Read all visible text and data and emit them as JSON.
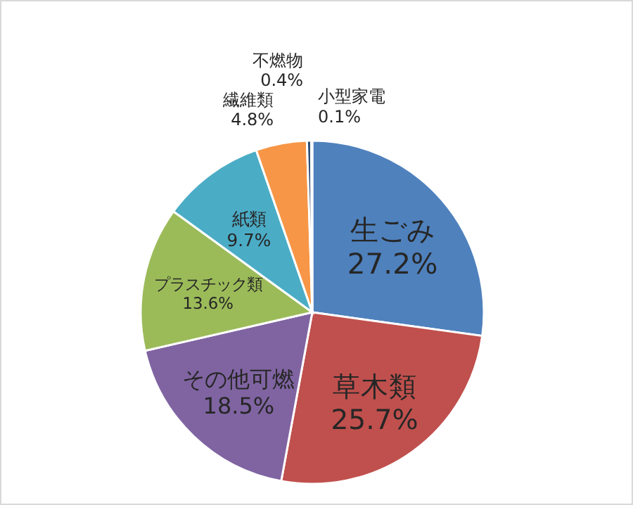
{
  "chart_data": {
    "type": "pie",
    "categories": [
      "生ごみ",
      "草木類",
      "その他可燃",
      "プラスチック類",
      "紙類",
      "繊維類",
      "不燃物",
      "小型家電"
    ],
    "values": [
      27.2,
      25.7,
      18.5,
      13.6,
      9.7,
      4.8,
      0.4,
      0.1
    ],
    "colors": [
      "#4f81bd",
      "#c0504d",
      "#8064a2",
      "#9bbb59",
      "#4bacc6",
      "#f79646",
      "#2c4d75",
      "#772c2a"
    ],
    "value_labels": [
      "27.2%",
      "25.7%",
      "18.5%",
      "13.6%",
      "9.7%",
      "4.8%",
      "0.4%",
      "0.1%"
    ]
  }
}
